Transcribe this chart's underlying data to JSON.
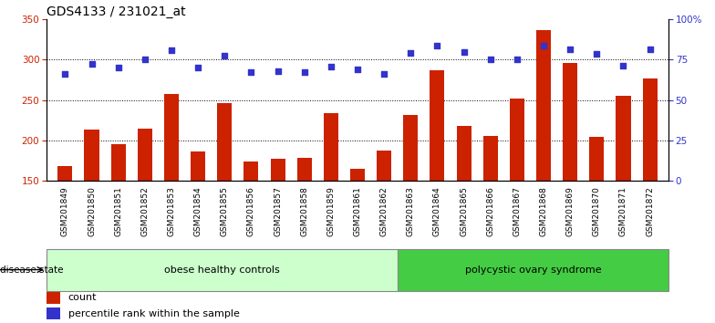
{
  "title": "GDS4133 / 231021_at",
  "categories": [
    "GSM201849",
    "GSM201850",
    "GSM201851",
    "GSM201852",
    "GSM201853",
    "GSM201854",
    "GSM201855",
    "GSM201856",
    "GSM201857",
    "GSM201858",
    "GSM201859",
    "GSM201861",
    "GSM201862",
    "GSM201863",
    "GSM201864",
    "GSM201865",
    "GSM201866",
    "GSM201867",
    "GSM201868",
    "GSM201869",
    "GSM201870",
    "GSM201871",
    "GSM201872"
  ],
  "counts": [
    168,
    213,
    196,
    215,
    258,
    186,
    246,
    174,
    177,
    178,
    234,
    165,
    187,
    232,
    287,
    218,
    206,
    252,
    337,
    296,
    204,
    255,
    277
  ],
  "percentile_ranks": [
    283,
    295,
    290,
    300,
    312,
    290,
    305,
    285,
    286,
    285,
    291,
    288,
    282,
    308,
    317,
    310,
    300,
    300,
    318,
    313,
    307,
    293,
    313
  ],
  "group1_label": "obese healthy controls",
  "group2_label": "polycystic ovary syndrome",
  "group1_count": 13,
  "group2_count": 10,
  "ylim_left": [
    150,
    350
  ],
  "bar_color": "#cc2200",
  "dot_color": "#3333cc",
  "group1_bg": "#ccffcc",
  "group2_bg": "#44cc44",
  "legend_count_label": "count",
  "legend_pct_label": "percentile rank within the sample",
  "title_fontsize": 10,
  "tick_fontsize": 6.5,
  "axis_label_color_left": "#cc2200",
  "axis_label_color_right": "#3333cc",
  "left_yticks": [
    150,
    200,
    250,
    300,
    350
  ],
  "right_ytick_positions": [
    150,
    200,
    250,
    300,
    350
  ],
  "right_ytick_labels": [
    "0",
    "25",
    "50",
    "75",
    "100%"
  ],
  "grid_lines": [
    200,
    250,
    300
  ]
}
